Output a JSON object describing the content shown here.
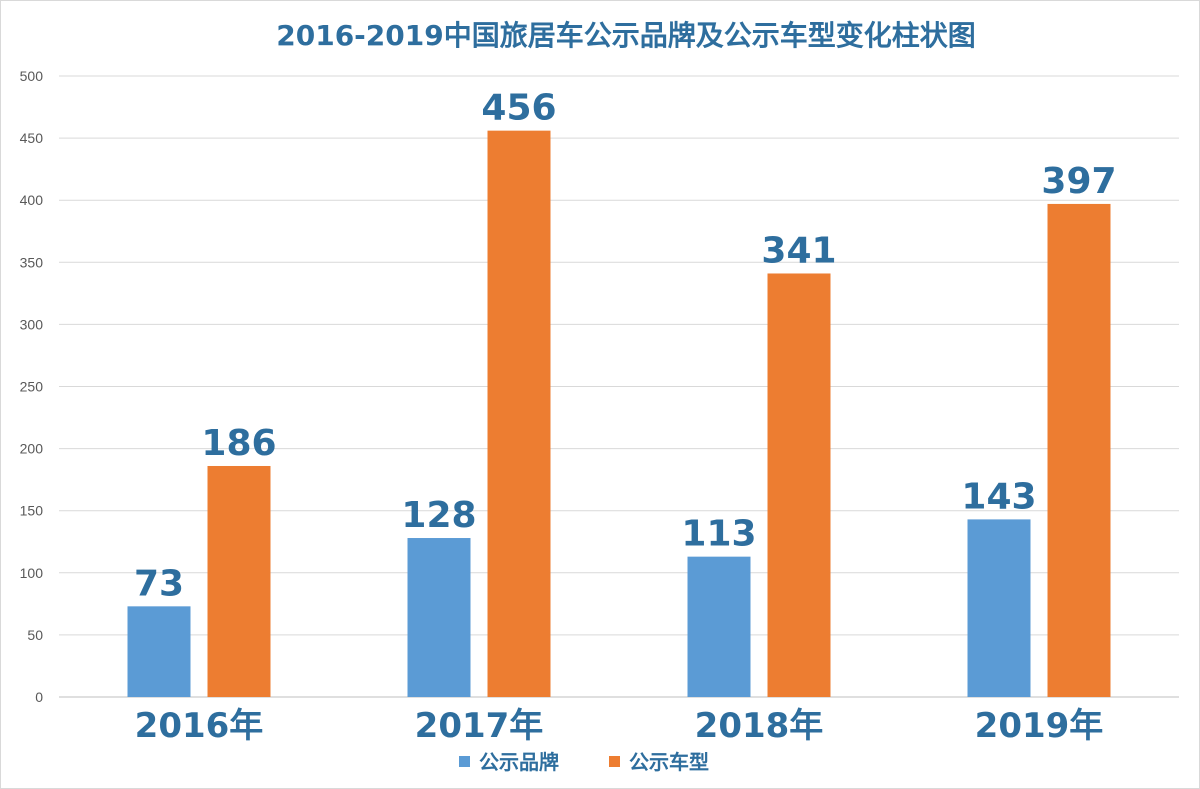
{
  "chart_data": {
    "type": "bar",
    "title": "2016-2019中国旅居车公示品牌及公示车型变化柱状图",
    "categories": [
      "2016年",
      "2017年",
      "2018年",
      "2019年"
    ],
    "series": [
      {
        "name": "公示品牌",
        "values": [
          73,
          128,
          113,
          143
        ],
        "color": "#5b9bd5"
      },
      {
        "name": "公示车型",
        "values": [
          186,
          456,
          341,
          397
        ],
        "color": "#ed7d31"
      }
    ],
    "ylim": [
      0,
      500
    ],
    "yticks": [
      0,
      50,
      100,
      150,
      200,
      250,
      300,
      350,
      400,
      450,
      500
    ],
    "grid": true,
    "legend": "bottom-center",
    "xlabel": "",
    "ylabel": ""
  }
}
